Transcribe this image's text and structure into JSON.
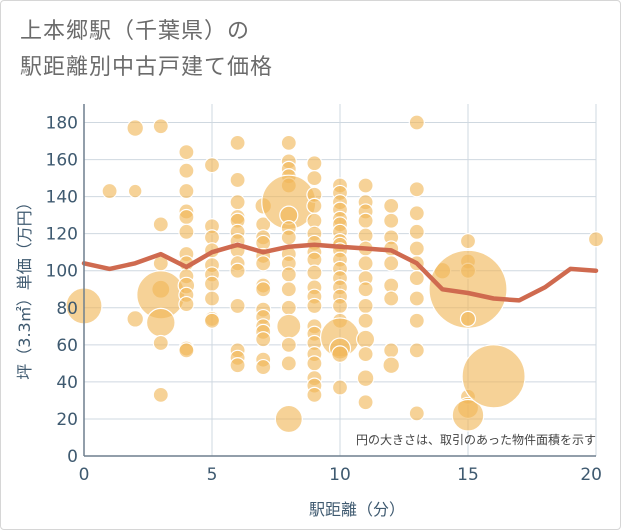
{
  "title_line1": "上本郷駅（千葉県）の",
  "title_line2": "駅距離別中古戸建て価格",
  "colors": {
    "bubble": "#f0b757",
    "line": "#cf6a4f",
    "grid": "#cfd8e0",
    "axis_text": "#3f5a70"
  },
  "chart_data": {
    "type": "scatter",
    "xlabel": "駅距離（分）",
    "ylabel": "坪（3.3㎡）単価（万円）",
    "xlim": [
      0,
      20
    ],
    "ylim": [
      0,
      190
    ],
    "xticks": [
      "0",
      "5",
      "10",
      "15",
      "20"
    ],
    "yticks": [
      "0",
      "20",
      "40",
      "60",
      "80",
      "100",
      "120",
      "140",
      "160",
      "180"
    ],
    "grid": true,
    "annotation": "円の大きさは、取引のあった物件面積を示す",
    "bubbles": [
      [
        0,
        81,
        2.4
      ],
      [
        1,
        143,
        1
      ],
      [
        2,
        177,
        1.1
      ],
      [
        2,
        143,
        0.9
      ],
      [
        2,
        74,
        1.1
      ],
      [
        3,
        178,
        1
      ],
      [
        3,
        125,
        1
      ],
      [
        3,
        104,
        1
      ],
      [
        3,
        90,
        1.2
      ],
      [
        3,
        87,
        3.2
      ],
      [
        3,
        72,
        1.9
      ],
      [
        3,
        61,
        1
      ],
      [
        3,
        33,
        1
      ],
      [
        4,
        164,
        1
      ],
      [
        4,
        154,
        1
      ],
      [
        4,
        143,
        1
      ],
      [
        4,
        132,
        1
      ],
      [
        4,
        129,
        1
      ],
      [
        4,
        121,
        1
      ],
      [
        4,
        109,
        1
      ],
      [
        4,
        104,
        1
      ],
      [
        4,
        97,
        1
      ],
      [
        4,
        92,
        1.1
      ],
      [
        4,
        87,
        1
      ],
      [
        4,
        82,
        1
      ],
      [
        4,
        58,
        1
      ],
      [
        4,
        57,
        1
      ],
      [
        5,
        157,
        1
      ],
      [
        5,
        124,
        1
      ],
      [
        5,
        118,
        1
      ],
      [
        5,
        111,
        1
      ],
      [
        5,
        103,
        1
      ],
      [
        5,
        98,
        1
      ],
      [
        5,
        93,
        1
      ],
      [
        5,
        85,
        1
      ],
      [
        5,
        74,
        1
      ],
      [
        5,
        73,
        1
      ],
      [
        6,
        169,
        1
      ],
      [
        6,
        149,
        1
      ],
      [
        6,
        137,
        1
      ],
      [
        6,
        129,
        1
      ],
      [
        6,
        127,
        1
      ],
      [
        6,
        121,
        1
      ],
      [
        6,
        116,
        1
      ],
      [
        6,
        111,
        1
      ],
      [
        6,
        104,
        1
      ],
      [
        6,
        100,
        1
      ],
      [
        6,
        81,
        1
      ],
      [
        6,
        57,
        1
      ],
      [
        6,
        53,
        1
      ],
      [
        6,
        49,
        1
      ],
      [
        7,
        135,
        1.1
      ],
      [
        7,
        125,
        1
      ],
      [
        7,
        118,
        1
      ],
      [
        7,
        115,
        1
      ],
      [
        7,
        108,
        1
      ],
      [
        7,
        104,
        1
      ],
      [
        7,
        92,
        1
      ],
      [
        7,
        90,
        1
      ],
      [
        7,
        79,
        1
      ],
      [
        7,
        75,
        1
      ],
      [
        7,
        70,
        1
      ],
      [
        7,
        67,
        1
      ],
      [
        7,
        63,
        1
      ],
      [
        7,
        52,
        1
      ],
      [
        7,
        48,
        1
      ],
      [
        8,
        169,
        1
      ],
      [
        8,
        159,
        1
      ],
      [
        8,
        155,
        1
      ],
      [
        8,
        151,
        1
      ],
      [
        8,
        146,
        1
      ],
      [
        8,
        137,
        3.6
      ],
      [
        8,
        130,
        1.2
      ],
      [
        8,
        123,
        1
      ],
      [
        8,
        118,
        1
      ],
      [
        8,
        109,
        1
      ],
      [
        8,
        104,
        1
      ],
      [
        8,
        98,
        1
      ],
      [
        8,
        90,
        1
      ],
      [
        8,
        80,
        1
      ],
      [
        8,
        70,
        1.6
      ],
      [
        8,
        60,
        1
      ],
      [
        8,
        50,
        1
      ],
      [
        8,
        20,
        1.8
      ],
      [
        9,
        158,
        1
      ],
      [
        9,
        150,
        1
      ],
      [
        9,
        141,
        1
      ],
      [
        9,
        135,
        1
      ],
      [
        9,
        127,
        1
      ],
      [
        9,
        120,
        1
      ],
      [
        9,
        115,
        1
      ],
      [
        9,
        110,
        1
      ],
      [
        9,
        106,
        1
      ],
      [
        9,
        99,
        1
      ],
      [
        9,
        91,
        1
      ],
      [
        9,
        86,
        1
      ],
      [
        9,
        81,
        1
      ],
      [
        9,
        70,
        1
      ],
      [
        9,
        66,
        1
      ],
      [
        9,
        61,
        1
      ],
      [
        9,
        55,
        1
      ],
      [
        9,
        50,
        1
      ],
      [
        9,
        42,
        1
      ],
      [
        9,
        38,
        1
      ],
      [
        9,
        33,
        1
      ],
      [
        10,
        146,
        1
      ],
      [
        10,
        142,
        1
      ],
      [
        10,
        137,
        1
      ],
      [
        10,
        133,
        1
      ],
      [
        10,
        128,
        1
      ],
      [
        10,
        125,
        1
      ],
      [
        10,
        121,
        1
      ],
      [
        10,
        116,
        1
      ],
      [
        10,
        114,
        1
      ],
      [
        10,
        111,
        1
      ],
      [
        10,
        106,
        1
      ],
      [
        10,
        101,
        1
      ],
      [
        10,
        96,
        1
      ],
      [
        10,
        91,
        1
      ],
      [
        10,
        86,
        1
      ],
      [
        10,
        81,
        1
      ],
      [
        10,
        73,
        1
      ],
      [
        10,
        64,
        2.6
      ],
      [
        10,
        58,
        1.4
      ],
      [
        10,
        55,
        1.1
      ],
      [
        10,
        37,
        1
      ],
      [
        11,
        146,
        1
      ],
      [
        11,
        137,
        1
      ],
      [
        11,
        132,
        1
      ],
      [
        11,
        127,
        1
      ],
      [
        11,
        119,
        1
      ],
      [
        11,
        112,
        1
      ],
      [
        11,
        104,
        1
      ],
      [
        11,
        96,
        1
      ],
      [
        11,
        90,
        1
      ],
      [
        11,
        81,
        1
      ],
      [
        11,
        73,
        1
      ],
      [
        11,
        63,
        1.2
      ],
      [
        11,
        55,
        1
      ],
      [
        11,
        42,
        1.1
      ],
      [
        11,
        29,
        1
      ],
      [
        12,
        135,
        1
      ],
      [
        12,
        127,
        1
      ],
      [
        12,
        118,
        1
      ],
      [
        12,
        112,
        1
      ],
      [
        12,
        104,
        1
      ],
      [
        12,
        92,
        1
      ],
      [
        12,
        85,
        1
      ],
      [
        12,
        57,
        1
      ],
      [
        12,
        49,
        1.1
      ],
      [
        13,
        180,
        1
      ],
      [
        13,
        144,
        1
      ],
      [
        13,
        131,
        1
      ],
      [
        13,
        121,
        1
      ],
      [
        13,
        112,
        1
      ],
      [
        13,
        104,
        1
      ],
      [
        13,
        96,
        1
      ],
      [
        13,
        85,
        1
      ],
      [
        13,
        73,
        1
      ],
      [
        13,
        57,
        1
      ],
      [
        13,
        23,
        1
      ],
      [
        14,
        100,
        1.1
      ],
      [
        15,
        116,
        1
      ],
      [
        15,
        105,
        1
      ],
      [
        15,
        100,
        1
      ],
      [
        15,
        90,
        5.2
      ],
      [
        15,
        74,
        1
      ],
      [
        15,
        32,
        1
      ],
      [
        15,
        26,
        1.4
      ],
      [
        15,
        22,
        2.1
      ],
      [
        16,
        43,
        4.2
      ],
      [
        20,
        117,
        1
      ]
    ],
    "series": [
      {
        "x": [
          0,
          1,
          2,
          3,
          4,
          5,
          6,
          7,
          8,
          9,
          10,
          11,
          12,
          13,
          14,
          15,
          16,
          17,
          18,
          19,
          20
        ],
        "values": [
          104,
          101,
          104,
          109,
          102,
          110,
          114,
          110,
          113,
          114,
          113,
          112,
          111,
          104,
          90,
          88,
          85,
          84,
          91,
          101,
          100
        ]
      }
    ]
  }
}
